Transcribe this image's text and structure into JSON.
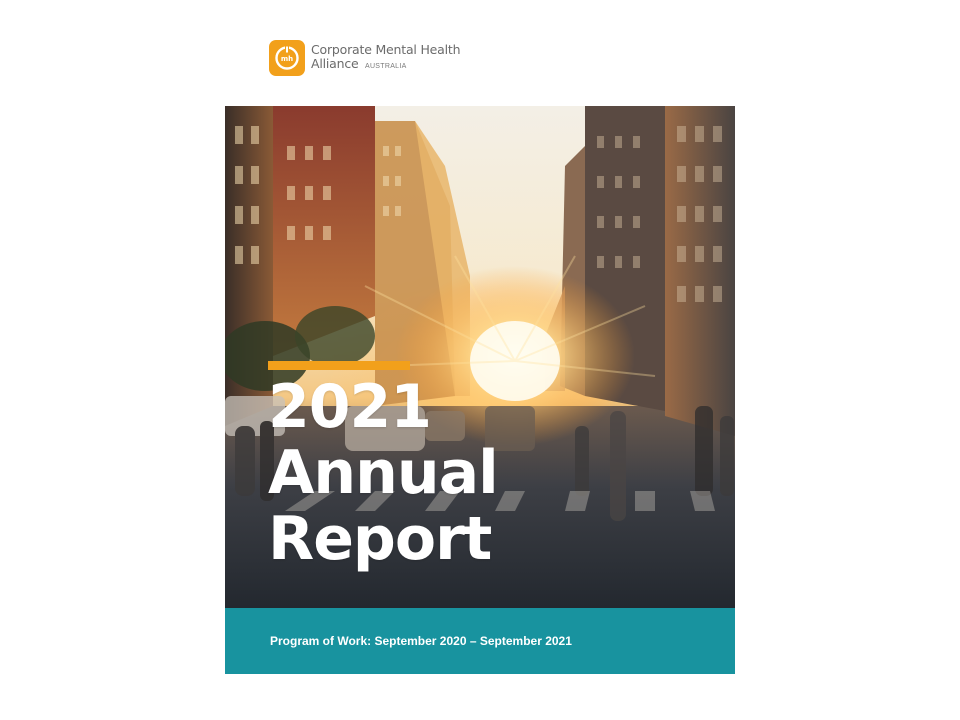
{
  "logo": {
    "line1": "Corporate Mental Health",
    "line2": "Alliance",
    "subline": "AUSTRALIA",
    "mark_text": "mh",
    "color": "#f2a01b"
  },
  "cover": {
    "title_year": "2021",
    "title_line2": "Annual",
    "title_line3": "Report",
    "accent_color": "#f2a01b",
    "image_description_icon": "city-street-sunset-image"
  },
  "band": {
    "text": "Program of Work: September 2020 – September 2021",
    "color": "#18939f"
  }
}
